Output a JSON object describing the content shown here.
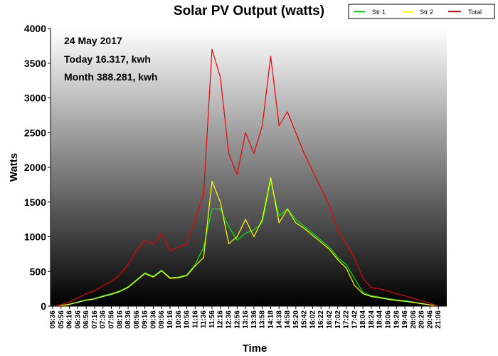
{
  "chart_data": {
    "type": "line",
    "title": "Solar PV Output (watts)",
    "xlabel": "Time",
    "ylabel": "Watts",
    "ylim": [
      0,
      4000
    ],
    "yticks": [
      0,
      500,
      1000,
      1500,
      2000,
      2500,
      3000,
      3500,
      4000
    ],
    "annotations": [
      "24 May 2017",
      "Today 16.317, kwh",
      "Month 388.281, kwh"
    ],
    "legend_position": "top-right",
    "x": [
      "05:36",
      "05:56",
      "06:16",
      "06:36",
      "06:56",
      "07:16",
      "07:36",
      "07:56",
      "08:16",
      "08:36",
      "08:56",
      "09:16",
      "09:36",
      "09:56",
      "10:16",
      "10:36",
      "10:56",
      "11:16",
      "11:36",
      "11:56",
      "12:16",
      "12:36",
      "12:56",
      "13:16",
      "13:36",
      "13:58",
      "14:18",
      "14:38",
      "14:58",
      "15:20",
      "15:42",
      "16:02",
      "16:22",
      "16:42",
      "17:02",
      "17:22",
      "17:42",
      "18:04",
      "18:24",
      "18:44",
      "19:06",
      "19:26",
      "19:46",
      "20:06",
      "20:26",
      "20:46",
      "21:06"
    ],
    "series": [
      {
        "name": "Str 1",
        "color": "#00ee00",
        "values": [
          0,
          10,
          30,
          60,
          90,
          110,
          150,
          180,
          220,
          280,
          380,
          480,
          430,
          520,
          410,
          420,
          450,
          600,
          850,
          1400,
          1400,
          1150,
          950,
          1050,
          1100,
          1200,
          1800,
          1300,
          1400,
          1250,
          1150,
          1050,
          950,
          850,
          700,
          600,
          400,
          200,
          150,
          130,
          110,
          90,
          80,
          60,
          40,
          20,
          0
        ]
      },
      {
        "name": "Str 2",
        "color": "#ffff00",
        "values": [
          0,
          8,
          25,
          55,
          85,
          105,
          140,
          170,
          210,
          270,
          370,
          470,
          420,
          510,
          400,
          410,
          440,
          580,
          700,
          1800,
          1500,
          900,
          1000,
          1250,
          1000,
          1250,
          1850,
          1200,
          1400,
          1200,
          1120,
          1020,
          920,
          820,
          670,
          550,
          300,
          180,
          140,
          120,
          100,
          80,
          70,
          55,
          35,
          18,
          0
        ]
      },
      {
        "name": "Total",
        "color": "#ee0000",
        "values": [
          0,
          20,
          60,
          120,
          180,
          220,
          300,
          360,
          450,
          600,
          800,
          950,
          900,
          1050,
          800,
          850,
          900,
          1250,
          1600,
          3700,
          3300,
          2200,
          1900,
          2500,
          2200,
          2600,
          3600,
          2600,
          2800,
          2500,
          2200,
          1950,
          1700,
          1450,
          1100,
          900,
          700,
          400,
          270,
          250,
          220,
          180,
          150,
          110,
          80,
          40,
          0
        ]
      }
    ]
  }
}
